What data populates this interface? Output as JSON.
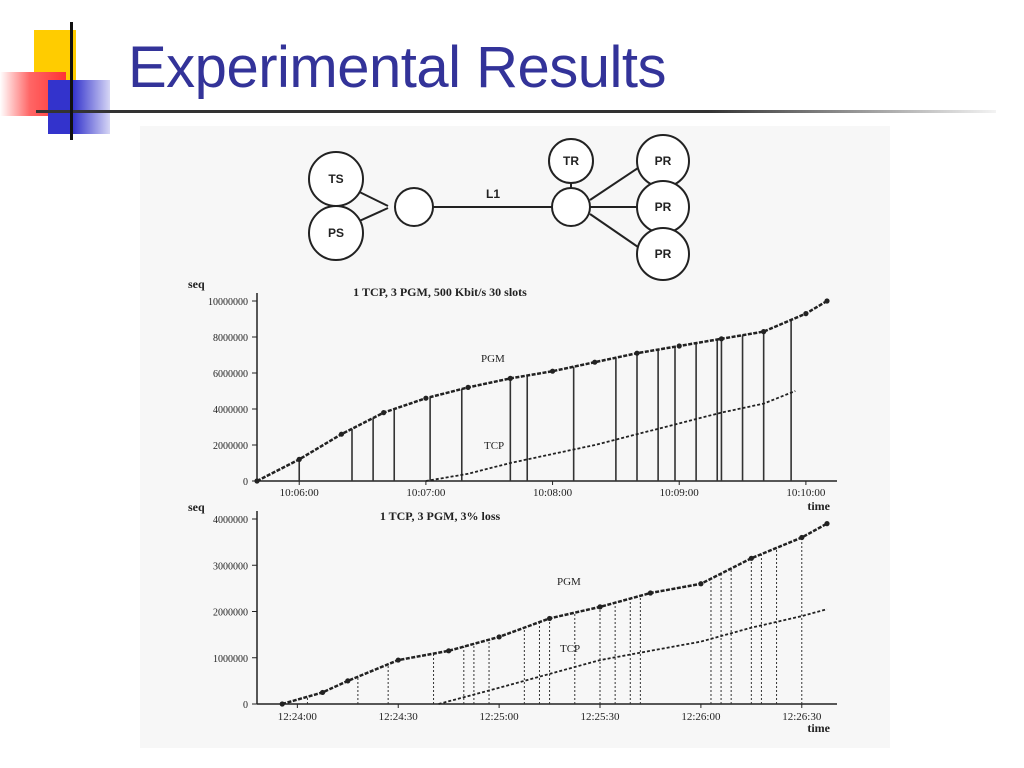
{
  "slide": {
    "title": "Experimental Results"
  },
  "topology": {
    "link_label": "L1",
    "left_nodes": [
      "TS",
      "PS"
    ],
    "right_top": "TR",
    "right_nodes": [
      "PR",
      "PR",
      "PR"
    ]
  },
  "chart_data": [
    {
      "type": "line",
      "title": "1 TCP, 3 PGM, 500 Kbit/s 30 slots",
      "xlabel": "time",
      "ylabel": "seq",
      "x_ticks": [
        "10:06:00",
        "10:07:00",
        "10:08:00",
        "10:09:00",
        "10:10:00"
      ],
      "y_ticks": [
        "0",
        "2000000",
        "4000000",
        "6000000",
        "8000000",
        "10000000"
      ],
      "ylim": [
        0,
        10000000
      ],
      "xlim_seconds": [
        -20,
        250
      ],
      "series": [
        {
          "name": "PGM",
          "x_seconds": [
            -20,
            0,
            20,
            40,
            60,
            80,
            100,
            120,
            140,
            160,
            180,
            200,
            220,
            240,
            250
          ],
          "values": [
            0,
            1200000,
            2600000,
            3800000,
            4600000,
            5200000,
            5700000,
            6100000,
            6600000,
            7100000,
            7500000,
            7900000,
            8300000,
            9300000,
            10000000
          ]
        },
        {
          "name": "TCP",
          "x_seconds": [
            60,
            80,
            100,
            120,
            140,
            160,
            180,
            200,
            220,
            235
          ],
          "values": [
            0,
            400000,
            1000000,
            1500000,
            2000000,
            2600000,
            3200000,
            3800000,
            4300000,
            5000000
          ]
        }
      ],
      "loss_markers_seconds": [
        0,
        25,
        35,
        45,
        62,
        77,
        100,
        108,
        130,
        150,
        160,
        170,
        178,
        188,
        198,
        200,
        210,
        220,
        233
      ]
    },
    {
      "type": "line",
      "title": "1 TCP, 3 PGM, 3% loss",
      "xlabel": "time",
      "ylabel": "seq",
      "x_ticks": [
        "12:24:00",
        "12:24:30",
        "12:25:00",
        "12:25:30",
        "12:26:00",
        "12:26:30"
      ],
      "y_ticks": [
        "0",
        "1000000",
        "2000000",
        "3000000",
        "4000000"
      ],
      "ylim": [
        0,
        4000000
      ],
      "xlim_seconds": [
        -8,
        105
      ],
      "series": [
        {
          "name": "PGM",
          "x_seconds": [
            -3,
            5,
            10,
            20,
            30,
            40,
            50,
            60,
            70,
            80,
            90,
            100,
            105
          ],
          "values": [
            0,
            250000,
            500000,
            950000,
            1150000,
            1450000,
            1850000,
            2100000,
            2400000,
            2600000,
            3150000,
            3600000,
            3900000
          ]
        },
        {
          "name": "TCP",
          "x_seconds": [
            28,
            40,
            50,
            60,
            70,
            80,
            90,
            100,
            105
          ],
          "values": [
            0,
            350000,
            650000,
            950000,
            1150000,
            1350000,
            1650000,
            1900000,
            2050000
          ]
        }
      ],
      "loss_markers_seconds": [
        2,
        12,
        18,
        27,
        33,
        35,
        38,
        45,
        48,
        50,
        55,
        60,
        63,
        66,
        68,
        82,
        84,
        86,
        90,
        92,
        95,
        100
      ]
    }
  ]
}
